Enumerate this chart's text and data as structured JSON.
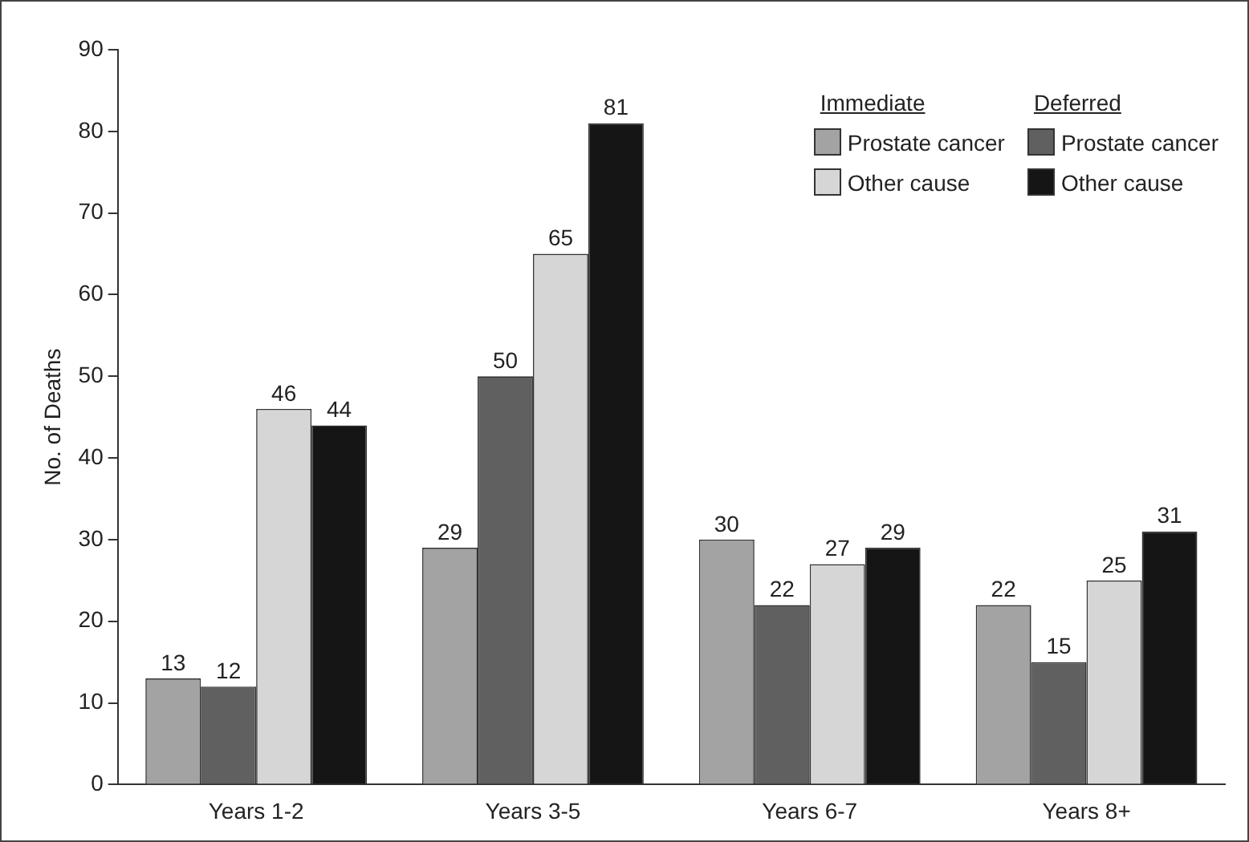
{
  "chart_data": {
    "type": "bar",
    "ylabel": "No. of Deaths",
    "categories": [
      "Years 1-2",
      "Years 3-5",
      "Years 6-7",
      "Years 8+"
    ],
    "series": [
      {
        "name": "Prostate cancer",
        "color": "#a3a3a3",
        "values": [
          13,
          29,
          30,
          22
        ]
      },
      {
        "name": "Prostate cancer",
        "color": "#606060",
        "values": [
          12,
          50,
          22,
          15
        ]
      },
      {
        "name": "Other cause",
        "color": "#d6d6d6",
        "values": [
          46,
          65,
          27,
          25
        ]
      },
      {
        "name": "Other cause",
        "color": "#151515",
        "values": [
          44,
          81,
          29,
          31
        ]
      }
    ],
    "annotations": [
      "Immediate",
      "Deferred"
    ],
    "ylim": [
      0,
      90
    ],
    "yticks": [
      0,
      10,
      20,
      30,
      40,
      50,
      60,
      70,
      80,
      90
    ],
    "grid": false,
    "legend": "top right",
    "data_labels": true
  }
}
